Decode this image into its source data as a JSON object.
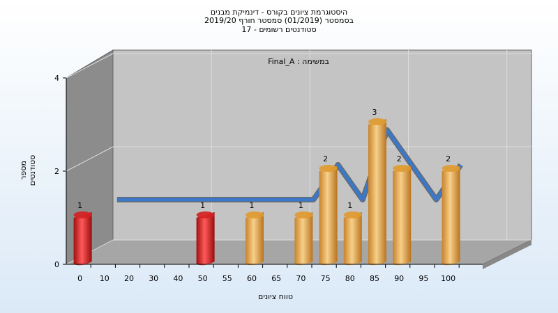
{
  "titles": {
    "line1": "היסטוגרמת ציונים בקורס - דינמיקת מבנים",
    "line2": "בסמסטר  (01/2019)  סמסטר חורף 2019/20",
    "line3": "סטודנטים רשומים - 17"
  },
  "chart_data": {
    "type": "bar",
    "annotation": "Final_A : במשימה",
    "xlabel": "טווח ציונים",
    "ylabel": "מספר סטודנטים",
    "categories": [
      "0",
      "10",
      "20",
      "30",
      "40",
      "50",
      "55",
      "60",
      "65",
      "70",
      "75",
      "80",
      "85",
      "90",
      "95",
      "100"
    ],
    "values": [
      1,
      0,
      0,
      0,
      0,
      1,
      0,
      1,
      0,
      1,
      2,
      1,
      3,
      2,
      0,
      2
    ],
    "bar_colors": [
      "#d42020",
      "#d42020",
      "#d42020",
      "#d42020",
      "#d42020",
      "#d42020",
      "#e09a30",
      "#e09a30",
      "#e09a30",
      "#e09a30",
      "#e09a30",
      "#e09a30",
      "#e09a30",
      "#e09a30",
      "#e09a30",
      "#e09a30"
    ],
    "ylim": [
      0,
      4
    ],
    "yticks": [
      0,
      2,
      4
    ],
    "grid": true,
    "curve_color": "#3b78c8"
  }
}
